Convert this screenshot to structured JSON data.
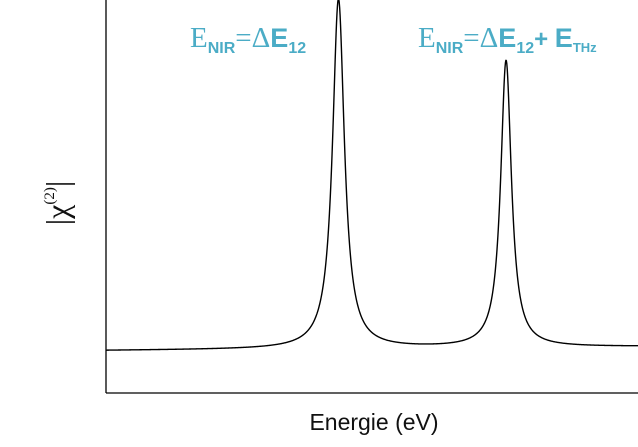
{
  "chart_data": {
    "type": "line",
    "xlabel": "Energie (eV)",
    "ylabel": {
      "open_bar": "|",
      "symbol": "χ",
      "superscript": "(2)",
      "close_bar": "|"
    },
    "annotations": [
      {
        "main": "E",
        "sub": "NIR",
        "eq": "=",
        "delta": "Δ",
        "bold_e": "E",
        "bold_sub": "12",
        "plus": "",
        "plus_e": "",
        "plus_sub": "",
        "peak": 1
      },
      {
        "main": "E",
        "sub": "NIR",
        "eq": "=",
        "delta": "Δ",
        "bold_e": "E",
        "bold_sub": "12",
        "plus": "+ ",
        "plus_e": "E",
        "plus_sub": "THz",
        "peak": 2
      }
    ],
    "annotation_color": "#4bacc6",
    "line_color": "#000000",
    "axis_color": "#000000",
    "grid": false,
    "legend": "none",
    "x_ticks": false,
    "y_ticks": false,
    "series": [
      {
        "shape": "sum of two Lorentzian peaks on a baseline",
        "baseline": 0.108,
        "baseline_slope": 0.01,
        "peaks": [
          {
            "center": 0.437,
            "height": 0.89,
            "width": 0.0135
          },
          {
            "center": 0.752,
            "height": 0.73,
            "width": 0.0122
          }
        ],
        "xlim": [
          0,
          1
        ],
        "ylim": [
          0,
          1
        ]
      }
    ]
  }
}
